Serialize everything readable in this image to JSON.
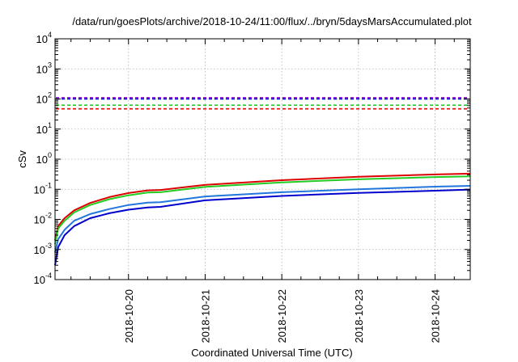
{
  "chart_data": {
    "type": "line",
    "title": "/data/run/goesPlots/archive/2018-10-24/11:00/flux/../bryn/5daysMarsAccumulated.plot",
    "xlabel": "Coordinated Universal Time (UTC)",
    "ylabel": "cSv",
    "yscale": "log",
    "ylim": [
      0.0001,
      10000
    ],
    "xlim": [
      "2018-10-19 01:00",
      "2018-10-24 11:00"
    ],
    "grid": true,
    "legend": "none",
    "x_ticks": [
      "2018-10-20",
      "2018-10-21",
      "2018-10-22",
      "2018-10-23",
      "2018-10-24"
    ],
    "y_ticks": [
      {
        "base": "10",
        "exp": "-4",
        "value": 0.0001
      },
      {
        "base": "10",
        "exp": "-3",
        "value": 0.001
      },
      {
        "base": "10",
        "exp": "-2",
        "value": 0.01
      },
      {
        "base": "10",
        "exp": "-1",
        "value": 0.1
      },
      {
        "base": "10",
        "exp": "0",
        "value": 1
      },
      {
        "base": "10",
        "exp": "1",
        "value": 10
      },
      {
        "base": "10",
        "exp": "2",
        "value": 100
      },
      {
        "base": "10",
        "exp": "3",
        "value": 1000
      },
      {
        "base": "10",
        "exp": "4",
        "value": 10000
      }
    ],
    "reference_lines": [
      {
        "value": 110,
        "color": "#9400d3",
        "style": "dashed"
      },
      {
        "value": 100,
        "color": "#0000cd",
        "style": "dashed"
      },
      {
        "value": 62,
        "color": "#22cc22",
        "style": "dashed"
      },
      {
        "value": 47,
        "color": "#ee0000",
        "style": "dashed"
      }
    ],
    "series": [
      {
        "color": "#dd0000",
        "x": [
          "2018-10-19 01:00",
          "2018-10-19 02:00",
          "2018-10-19 04:00",
          "2018-10-19 07:00",
          "2018-10-19 12:00",
          "2018-10-19 18:00",
          "2018-10-20 00:00",
          "2018-10-20 06:00",
          "2018-10-20 10:00",
          "2018-10-21 00:00",
          "2018-10-22 00:00",
          "2018-10-23 00:00",
          "2018-10-24 00:00",
          "2018-10-24 11:00"
        ],
        "y": [
          0.002,
          0.006,
          0.011,
          0.02,
          0.035,
          0.055,
          0.075,
          0.092,
          0.095,
          0.14,
          0.2,
          0.26,
          0.31,
          0.33
        ]
      },
      {
        "color": "#22cc22",
        "x": [
          "2018-10-19 01:00",
          "2018-10-19 02:00",
          "2018-10-19 04:00",
          "2018-10-19 07:00",
          "2018-10-19 12:00",
          "2018-10-19 18:00",
          "2018-10-20 00:00",
          "2018-10-20 06:00",
          "2018-10-20 10:00",
          "2018-10-21 00:00",
          "2018-10-22 00:00",
          "2018-10-23 00:00",
          "2018-10-24 00:00",
          "2018-10-24 11:00"
        ],
        "y": [
          0.0015,
          0.005,
          0.009,
          0.017,
          0.03,
          0.047,
          0.063,
          0.078,
          0.08,
          0.12,
          0.17,
          0.215,
          0.255,
          0.27
        ]
      },
      {
        "color": "#2277dd",
        "x": [
          "2018-10-19 01:00",
          "2018-10-19 02:00",
          "2018-10-19 04:00",
          "2018-10-19 07:00",
          "2018-10-19 12:00",
          "2018-10-19 18:00",
          "2018-10-20 00:00",
          "2018-10-20 06:00",
          "2018-10-20 10:00",
          "2018-10-21 00:00",
          "2018-10-22 00:00",
          "2018-10-23 00:00",
          "2018-10-24 00:00",
          "2018-10-24 11:00"
        ],
        "y": [
          0.0008,
          0.0022,
          0.0045,
          0.009,
          0.015,
          0.022,
          0.03,
          0.036,
          0.037,
          0.058,
          0.08,
          0.1,
          0.122,
          0.13
        ]
      },
      {
        "color": "#0000cc",
        "x": [
          "2018-10-19 01:00",
          "2018-10-19 02:00",
          "2018-10-19 04:00",
          "2018-10-19 07:00",
          "2018-10-19 12:00",
          "2018-10-19 18:00",
          "2018-10-20 00:00",
          "2018-10-20 06:00",
          "2018-10-20 10:00",
          "2018-10-21 00:00",
          "2018-10-22 00:00",
          "2018-10-23 00:00",
          "2018-10-24 00:00",
          "2018-10-24 11:00"
        ],
        "y": [
          0.0003,
          0.0012,
          0.003,
          0.006,
          0.011,
          0.016,
          0.021,
          0.025,
          0.026,
          0.043,
          0.06,
          0.076,
          0.09,
          0.098
        ]
      }
    ]
  }
}
